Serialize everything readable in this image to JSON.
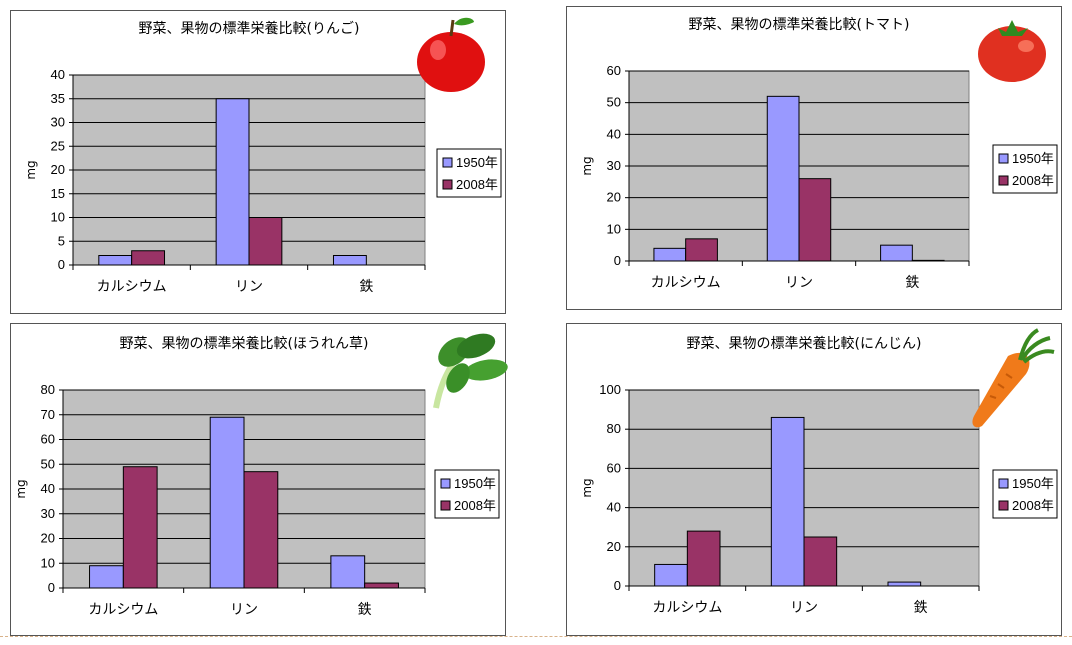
{
  "colors": {
    "series_1950": "#9999ff",
    "series_2008": "#993366",
    "plot_bg": "#c0c0c0",
    "bar_stroke": "#000000"
  },
  "charts": [
    {
      "id": "apple",
      "title": "野菜、果物の標準栄養比較(りんご)",
      "icon": "apple-icon"
    },
    {
      "id": "tomato",
      "title": "野菜、果物の標準栄養比較(トマト)",
      "icon": "tomato-icon"
    },
    {
      "id": "spinach",
      "title": "野菜、果物の標準栄養比較(ほうれん草)",
      "icon": "spinach-icon"
    },
    {
      "id": "carrot",
      "title": "野菜、果物の標準栄養比較(にんじん)",
      "icon": "carrot-icon"
    }
  ],
  "chart_data": [
    {
      "type": "bar",
      "title": "野菜、果物の標準栄養比較(りんご)",
      "categories": [
        "カルシウム",
        "リン",
        "鉄"
      ],
      "series": [
        {
          "name": "1950年",
          "values": [
            2,
            35,
            2
          ]
        },
        {
          "name": "2008年",
          "values": [
            3,
            10,
            0
          ]
        }
      ],
      "ylabel": "mg",
      "ylim": [
        0,
        40
      ],
      "yticks": [
        0,
        5,
        10,
        15,
        20,
        25,
        30,
        35,
        40
      ],
      "grid": true,
      "legend": "right"
    },
    {
      "type": "bar",
      "title": "野菜、果物の標準栄養比較(トマト)",
      "categories": [
        "カルシウム",
        "リン",
        "鉄"
      ],
      "series": [
        {
          "name": "1950年",
          "values": [
            4,
            52,
            5
          ]
        },
        {
          "name": "2008年",
          "values": [
            7,
            26,
            0.2
          ]
        }
      ],
      "ylabel": "mg",
      "ylim": [
        0,
        60
      ],
      "yticks": [
        0,
        10,
        20,
        30,
        40,
        50,
        60
      ],
      "grid": true,
      "legend": "right"
    },
    {
      "type": "bar",
      "title": "野菜、果物の標準栄養比較(ほうれん草)",
      "categories": [
        "カルシウム",
        "リン",
        "鉄"
      ],
      "series": [
        {
          "name": "1950年",
          "values": [
            9,
            69,
            13
          ]
        },
        {
          "name": "2008年",
          "values": [
            49,
            47,
            2
          ]
        }
      ],
      "ylabel": "mg",
      "ylim": [
        0,
        80
      ],
      "yticks": [
        0,
        10,
        20,
        30,
        40,
        50,
        60,
        70,
        80
      ],
      "grid": true,
      "legend": "right"
    },
    {
      "type": "bar",
      "title": "野菜、果物の標準栄養比較(にんじん)",
      "categories": [
        "カルシウム",
        "リン",
        "鉄"
      ],
      "series": [
        {
          "name": "1950年",
          "values": [
            11,
            86,
            2
          ]
        },
        {
          "name": "2008年",
          "values": [
            28,
            25,
            0
          ]
        }
      ],
      "ylabel": "mg",
      "ylim": [
        0,
        100
      ],
      "yticks": [
        0,
        20,
        40,
        60,
        80,
        100
      ],
      "grid": true,
      "legend": "right"
    }
  ]
}
